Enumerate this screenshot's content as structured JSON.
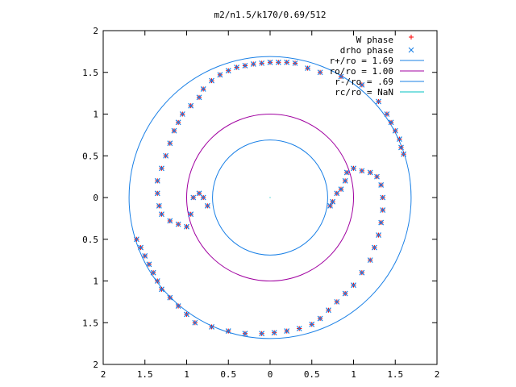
{
  "chart_data": {
    "type": "scatter",
    "title": "m2/n1.5/k170/0.69/512",
    "xlabel": "",
    "ylabel": "",
    "xlim": [
      -2,
      2
    ],
    "ylim": [
      -2,
      2
    ],
    "grid": false,
    "legend_position": "top-right",
    "x_ticks": [
      "2",
      "1.5",
      "1",
      "0.5",
      "0",
      "0.5",
      "1",
      "1.5",
      "2"
    ],
    "y_ticks": [
      "2",
      "1.5",
      "1",
      "0.5",
      "0",
      "0.5",
      "1",
      "1.5",
      "2"
    ],
    "legend": [
      {
        "label": "W phase",
        "marker": "plus",
        "color": "#ff0000"
      },
      {
        "label": "drho phase",
        "marker": "cross",
        "color": "#1a80e6"
      },
      {
        "label": "r+/ro = 1.69",
        "marker": "line",
        "color": "#1a80e6"
      },
      {
        "label": "ro/ro = 1.00",
        "marker": "line",
        "color": "#a000a0"
      },
      {
        "label": "r-/ro = .69",
        "marker": "line",
        "color": "#1a80e6"
      },
      {
        "label": "rc/ro = NaN",
        "marker": "line",
        "color": "#00c0c0"
      }
    ],
    "circles": [
      {
        "name": "r+/ro = 1.69",
        "radius": 1.69,
        "color": "#1a80e6"
      },
      {
        "name": "ro/ro = 1.00",
        "radius": 1.0,
        "color": "#a000a0"
      },
      {
        "name": "r-/ro = .69",
        "radius": 0.69,
        "color": "#1a80e6"
      }
    ],
    "series": [
      {
        "name": "W phase",
        "marker": "plus",
        "color": "#ff0000",
        "points": [
          [
            0.3,
            1.61
          ],
          [
            0.2,
            1.62
          ],
          [
            0.1,
            1.62
          ],
          [
            0.0,
            1.62
          ],
          [
            -0.1,
            1.61
          ],
          [
            -0.2,
            1.6
          ],
          [
            -0.3,
            1.58
          ],
          [
            -0.4,
            1.56
          ],
          [
            -0.5,
            1.52
          ],
          [
            -0.6,
            1.47
          ],
          [
            -0.7,
            1.4
          ],
          [
            -0.8,
            1.3
          ],
          [
            -0.85,
            1.2
          ],
          [
            -0.95,
            1.1
          ],
          [
            -1.05,
            1.0
          ],
          [
            -1.1,
            0.9
          ],
          [
            -1.15,
            0.8
          ],
          [
            -1.2,
            0.65
          ],
          [
            -1.25,
            0.5
          ],
          [
            -1.3,
            0.35
          ],
          [
            -1.35,
            0.2
          ],
          [
            -1.35,
            0.05
          ],
          [
            -1.33,
            -0.1
          ],
          [
            -1.3,
            -0.2
          ],
          [
            -1.2,
            -0.28
          ],
          [
            -1.1,
            -0.32
          ],
          [
            -1.0,
            -0.35
          ],
          [
            -0.95,
            -0.2
          ],
          [
            -0.92,
            0.0
          ],
          [
            -0.85,
            0.05
          ],
          [
            -0.8,
            0.0
          ],
          [
            -0.75,
            -0.1
          ],
          [
            -1.6,
            -0.5
          ],
          [
            -1.55,
            -0.6
          ],
          [
            -1.5,
            -0.7
          ],
          [
            -1.45,
            -0.8
          ],
          [
            -1.4,
            -0.9
          ],
          [
            -1.35,
            -1.0
          ],
          [
            -1.3,
            -1.1
          ],
          [
            -1.2,
            -1.2
          ],
          [
            -1.1,
            -1.3
          ],
          [
            -1.0,
            -1.4
          ],
          [
            -0.9,
            -1.5
          ],
          [
            -0.7,
            -1.55
          ],
          [
            -0.5,
            -1.6
          ],
          [
            -0.3,
            -1.63
          ],
          [
            -0.1,
            -1.63
          ],
          [
            0.05,
            -1.62
          ],
          [
            0.2,
            -1.6
          ],
          [
            0.35,
            -1.57
          ],
          [
            0.5,
            -1.52
          ],
          [
            0.6,
            -1.45
          ],
          [
            0.7,
            -1.35
          ],
          [
            0.8,
            -1.25
          ],
          [
            0.9,
            -1.15
          ],
          [
            1.0,
            -1.05
          ],
          [
            1.1,
            -0.9
          ],
          [
            1.2,
            -0.75
          ],
          [
            1.25,
            -0.6
          ],
          [
            1.3,
            -0.45
          ],
          [
            1.33,
            -0.3
          ],
          [
            1.35,
            -0.15
          ],
          [
            1.35,
            0.0
          ],
          [
            1.33,
            0.15
          ],
          [
            1.28,
            0.25
          ],
          [
            1.2,
            0.3
          ],
          [
            1.1,
            0.32
          ],
          [
            1.0,
            0.35
          ],
          [
            0.92,
            0.3
          ],
          [
            0.9,
            0.2
          ],
          [
            0.85,
            0.1
          ],
          [
            0.8,
            0.05
          ],
          [
            0.75,
            -0.05
          ],
          [
            0.72,
            -0.1
          ],
          [
            0.45,
            1.55
          ],
          [
            0.6,
            1.5
          ],
          [
            0.85,
            1.45
          ],
          [
            1.1,
            1.35
          ],
          [
            1.3,
            1.15
          ],
          [
            1.4,
            1.0
          ],
          [
            1.45,
            0.9
          ],
          [
            1.5,
            0.8
          ],
          [
            1.55,
            0.7
          ],
          [
            1.57,
            0.6
          ],
          [
            1.6,
            0.52
          ]
        ]
      },
      {
        "name": "drho phase",
        "marker": "cross",
        "color": "#1a80e6",
        "points": [
          [
            0.3,
            1.61
          ],
          [
            0.2,
            1.62
          ],
          [
            0.1,
            1.62
          ],
          [
            0.0,
            1.62
          ],
          [
            -0.1,
            1.61
          ],
          [
            -0.2,
            1.6
          ],
          [
            -0.3,
            1.58
          ],
          [
            -0.4,
            1.56
          ],
          [
            -0.5,
            1.52
          ],
          [
            -0.6,
            1.47
          ],
          [
            -0.7,
            1.4
          ],
          [
            -0.8,
            1.3
          ],
          [
            -0.85,
            1.2
          ],
          [
            -0.95,
            1.1
          ],
          [
            -1.05,
            1.0
          ],
          [
            -1.1,
            0.9
          ],
          [
            -1.15,
            0.8
          ],
          [
            -1.2,
            0.65
          ],
          [
            -1.25,
            0.5
          ],
          [
            -1.3,
            0.35
          ],
          [
            -1.35,
            0.2
          ],
          [
            -1.35,
            0.05
          ],
          [
            -1.33,
            -0.1
          ],
          [
            -1.3,
            -0.2
          ],
          [
            -1.2,
            -0.28
          ],
          [
            -1.1,
            -0.32
          ],
          [
            -1.0,
            -0.35
          ],
          [
            -0.95,
            -0.2
          ],
          [
            -0.92,
            0.0
          ],
          [
            -0.85,
            0.05
          ],
          [
            -0.8,
            0.0
          ],
          [
            -0.75,
            -0.1
          ],
          [
            -1.6,
            -0.5
          ],
          [
            -1.55,
            -0.6
          ],
          [
            -1.5,
            -0.7
          ],
          [
            -1.45,
            -0.8
          ],
          [
            -1.4,
            -0.9
          ],
          [
            -1.35,
            -1.0
          ],
          [
            -1.3,
            -1.1
          ],
          [
            -1.2,
            -1.2
          ],
          [
            -1.1,
            -1.3
          ],
          [
            -1.0,
            -1.4
          ],
          [
            -0.9,
            -1.5
          ],
          [
            -0.7,
            -1.55
          ],
          [
            -0.5,
            -1.6
          ],
          [
            -0.3,
            -1.63
          ],
          [
            -0.1,
            -1.63
          ],
          [
            0.05,
            -1.62
          ],
          [
            0.2,
            -1.6
          ],
          [
            0.35,
            -1.57
          ],
          [
            0.5,
            -1.52
          ],
          [
            0.6,
            -1.45
          ],
          [
            0.7,
            -1.35
          ],
          [
            0.8,
            -1.25
          ],
          [
            0.9,
            -1.15
          ],
          [
            1.0,
            -1.05
          ],
          [
            1.1,
            -0.9
          ],
          [
            1.2,
            -0.75
          ],
          [
            1.25,
            -0.6
          ],
          [
            1.3,
            -0.45
          ],
          [
            1.33,
            -0.3
          ],
          [
            1.35,
            -0.15
          ],
          [
            1.35,
            0.0
          ],
          [
            1.33,
            0.15
          ],
          [
            1.28,
            0.25
          ],
          [
            1.2,
            0.3
          ],
          [
            1.1,
            0.32
          ],
          [
            1.0,
            0.35
          ],
          [
            0.92,
            0.3
          ],
          [
            0.9,
            0.2
          ],
          [
            0.85,
            0.1
          ],
          [
            0.8,
            0.05
          ],
          [
            0.75,
            -0.05
          ],
          [
            0.72,
            -0.1
          ],
          [
            0.45,
            1.55
          ],
          [
            0.6,
            1.5
          ],
          [
            0.85,
            1.45
          ],
          [
            1.1,
            1.35
          ],
          [
            1.3,
            1.15
          ],
          [
            1.4,
            1.0
          ],
          [
            1.45,
            0.9
          ],
          [
            1.5,
            0.8
          ],
          [
            1.55,
            0.7
          ],
          [
            1.57,
            0.6
          ],
          [
            1.6,
            0.52
          ]
        ]
      }
    ]
  }
}
